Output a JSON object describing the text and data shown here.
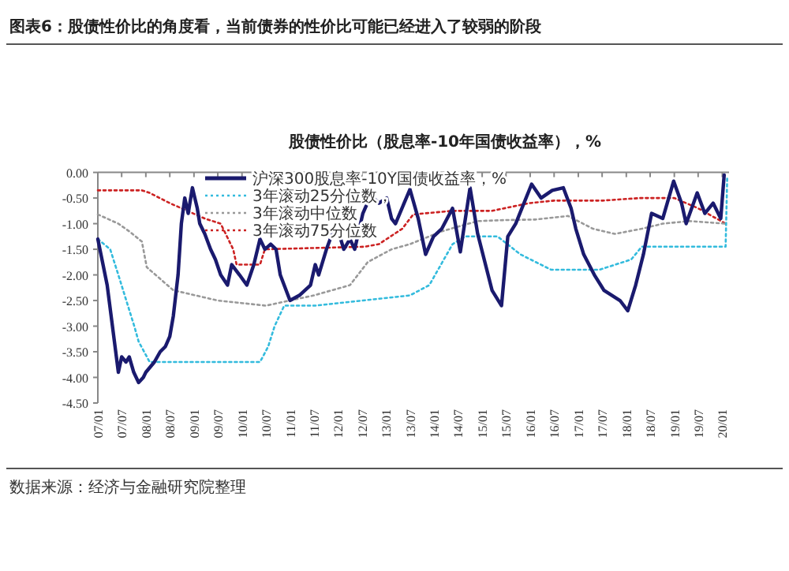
{
  "chart_data": {
    "type": "line",
    "title": "股债性价比（股息率-10年国债收益率），%",
    "subtitle": "图表6：股债性价比的角度看，当前债券的性价比可能已经进入了较弱的阶段",
    "annotations": [
      "数据来源：经济与金融研究院整理"
    ],
    "xlim": [
      "2007-01-01",
      "2020-02-21"
    ],
    "xticks": [
      {
        "value": "2007-01-01",
        "label": "07/01"
      },
      {
        "value": "2007-07-01",
        "label": "07/07"
      },
      {
        "value": "2008-01-01",
        "label": "08/01"
      },
      {
        "value": "2008-07-01",
        "label": "08/07"
      },
      {
        "value": "2009-01-01",
        "label": "09/01"
      },
      {
        "value": "2009-07-01",
        "label": "09/07"
      },
      {
        "value": "2010-01-01",
        "label": "10/01"
      },
      {
        "value": "2010-07-01",
        "label": "10/07"
      },
      {
        "value": "2011-01-01",
        "label": "11/01"
      },
      {
        "value": "2011-07-01",
        "label": "11/07"
      },
      {
        "value": "2012-01-01",
        "label": "12/01"
      },
      {
        "value": "2012-07-01",
        "label": "12/07"
      },
      {
        "value": "2013-01-01",
        "label": "13/01"
      },
      {
        "value": "2013-07-01",
        "label": "13/07"
      },
      {
        "value": "2014-01-01",
        "label": "14/01"
      },
      {
        "value": "2014-07-01",
        "label": "14/07"
      },
      {
        "value": "2015-01-01",
        "label": "15/01"
      },
      {
        "value": "2015-07-01",
        "label": "15/07"
      },
      {
        "value": "2016-01-01",
        "label": "16/01"
      },
      {
        "value": "2016-07-01",
        "label": "16/07"
      },
      {
        "value": "2017-01-01",
        "label": "17/01"
      },
      {
        "value": "2017-07-01",
        "label": "17/07"
      },
      {
        "value": "2018-01-01",
        "label": "18/01"
      },
      {
        "value": "2018-07-01",
        "label": "18/07"
      },
      {
        "value": "2019-01-01",
        "label": "19/01"
      },
      {
        "value": "2019-07-01",
        "label": "19/07"
      },
      {
        "value": "2020-01-01",
        "label": "20/01"
      }
    ],
    "ylim": [
      -4.5,
      0
    ],
    "yticks": [
      {
        "value": 0,
        "label": "0.00"
      },
      {
        "value": -0.5,
        "label": "-0.50"
      },
      {
        "value": -1,
        "label": "-1.00"
      },
      {
        "value": -1.5,
        "label": "-1.50"
      },
      {
        "value": -2,
        "label": "-2.00"
      },
      {
        "value": -2.5,
        "label": "-2.50"
      },
      {
        "value": -3,
        "label": "-3.00"
      },
      {
        "value": -3.5,
        "label": "-3.50"
      },
      {
        "value": -4,
        "label": "-4.00"
      },
      {
        "value": -4.5,
        "label": "-4.50"
      }
    ],
    "legend": "top",
    "marker": "none",
    "series": [
      {
        "name": "沪深300股息率-10Y国债收益率，%",
        "color": "#1a1a6e",
        "line_style": "solid",
        "x": [
          "2007-01-01",
          "2007-03-13",
          "2007-06-06",
          "2007-07-01",
          "2007-08-03",
          "2007-08-28",
          "2007-10-01",
          "2007-11-07",
          "2007-12-13",
          "2008-01-01",
          "2008-03-06",
          "2008-04-19",
          "2008-05-28",
          "2008-07-01",
          "2008-07-28",
          "2008-09-02",
          "2008-09-27",
          "2008-10-23",
          "2008-11-18",
          "2008-12-20",
          "2009-01-26",
          "2009-02-14",
          "2009-03-24",
          "2009-05-07",
          "2009-06-13",
          "2009-07-23",
          "2009-09-13",
          "2009-10-15",
          "2009-12-13",
          "2010-02-07",
          "2010-04-01",
          "2010-05-18",
          "2010-06-24",
          "2010-08-07",
          "2010-09-17",
          "2010-10-19",
          "2011-01-01",
          "2011-03-13",
          "2011-06-06",
          "2011-07-12",
          "2011-08-07",
          "2011-10-05",
          "2011-12-17",
          "2012-02-14",
          "2012-04-01",
          "2012-05-07",
          "2012-07-08",
          "2012-09-06",
          "2012-11-07",
          "2013-01-05",
          "2013-02-11",
          "2013-03-13",
          "2013-07-01",
          "2013-09-02",
          "2013-10-28",
          "2013-12-27",
          "2014-02-28",
          "2014-05-21",
          "2014-07-19",
          "2014-10-01",
          "2014-11-28",
          "2015-03-17",
          "2015-05-28",
          "2015-07-15",
          "2015-09-13",
          "2016-01-12",
          "2016-03-24",
          "2016-06-17",
          "2016-09-09",
          "2016-11-07",
          "2016-12-13",
          "2017-02-11",
          "2017-05-03",
          "2017-07-15",
          "2017-11-14",
          "2018-01-12",
          "2018-03-13",
          "2018-05-11",
          "2018-07-12",
          "2018-10-05",
          "2018-12-27",
          "2019-02-25",
          "2019-04-01",
          "2019-06-24",
          "2019-08-21",
          "2019-10-23",
          "2019-12-20",
          "2020-01-15"
        ],
        "values": [
          -1.3,
          -2.2,
          -3.9,
          -3.6,
          -3.7,
          -3.6,
          -3.9,
          -4.1,
          -4.0,
          -3.9,
          -3.7,
          -3.5,
          -3.4,
          -3.2,
          -2.8,
          -2.0,
          -1.0,
          -0.5,
          -0.8,
          -0.3,
          -0.7,
          -1.0,
          -1.2,
          -1.5,
          -1.7,
          -2.0,
          -2.2,
          -1.8,
          -2.0,
          -2.2,
          -1.8,
          -1.3,
          -1.5,
          -1.4,
          -1.5,
          -2.0,
          -2.5,
          -2.4,
          -2.2,
          -1.8,
          -2.0,
          -1.5,
          -1.0,
          -1.5,
          -1.3,
          -1.5,
          -0.8,
          -0.45,
          -0.6,
          -0.5,
          -0.9,
          -1.0,
          -0.33,
          -0.9,
          -1.6,
          -1.25,
          -1.1,
          -0.7,
          -1.55,
          -0.3,
          -1.2,
          -2.3,
          -2.6,
          -1.25,
          -1.0,
          -0.23,
          -0.5,
          -0.35,
          -0.3,
          -0.7,
          -1.1,
          -1.6,
          -2.0,
          -2.3,
          -2.5,
          -2.7,
          -2.2,
          -1.6,
          -0.8,
          -0.9,
          -0.17,
          -0.6,
          -1.0,
          -0.4,
          -0.8,
          -0.6,
          -0.9,
          -0.05
        ]
      },
      {
        "name": "3年滚动25分位数，",
        "color": "#33bbdd",
        "line_style": "dotted",
        "x": [
          "2007-01-01",
          "2007-04-05",
          "2007-06-06",
          "2007-10-05",
          "2007-11-07",
          "2008-01-30",
          "2009-07-01",
          "2010-05-18",
          "2010-07-19",
          "2010-09-06",
          "2010-11-18",
          "2011-07-12",
          "2012-07-08",
          "2013-07-01",
          "2013-11-25",
          "2014-05-21",
          "2014-08-25",
          "2015-01-01",
          "2015-04-28",
          "2015-10-19",
          "2016-06-09",
          "2017-06-09",
          "2018-02-07",
          "2018-04-28",
          "2020-01-26",
          "2020-02-07"
        ],
        "values": [
          -1.3,
          -1.5,
          -2.0,
          -3.0,
          -3.3,
          -3.7,
          -3.7,
          -3.7,
          -3.4,
          -3.0,
          -2.6,
          -2.6,
          -2.5,
          -2.4,
          -2.2,
          -1.4,
          -1.25,
          -1.25,
          -1.25,
          -1.6,
          -1.9,
          -1.9,
          -1.7,
          -1.45,
          -1.45,
          -0.1
        ]
      },
      {
        "name": "3年滚动中位数",
        "color": "#999999",
        "line_style": "dotted",
        "x": [
          "2007-01-01",
          "2007-06-06",
          "2007-08-28",
          "2007-12-02",
          "2008-01-08",
          "2008-07-28",
          "2009-07-01",
          "2010-07-01",
          "2011-07-01",
          "2012-04-01",
          "2012-08-14",
          "2013-02-11",
          "2013-07-01",
          "2014-02-28",
          "2014-11-28",
          "2015-07-01",
          "2016-02-07",
          "2016-10-15",
          "2017-04-23",
          "2017-10-05",
          "2018-04-28",
          "2018-10-05",
          "2019-04-26",
          "2020-01-26"
        ],
        "values": [
          -0.82,
          -1.0,
          -1.15,
          -1.35,
          -1.85,
          -2.3,
          -2.5,
          -2.6,
          -2.4,
          -2.2,
          -1.75,
          -1.5,
          -1.4,
          -1.15,
          -0.95,
          -0.93,
          -0.92,
          -0.85,
          -1.1,
          -1.2,
          -1.1,
          -1.0,
          -0.95,
          -1.0
        ]
      },
      {
        "name": "3年滚动75分位数",
        "color": "#cc2222",
        "line_style": "dotted",
        "x": [
          "2007-01-01",
          "2007-12-02",
          "2008-01-30",
          "2008-07-01",
          "2009-03-24",
          "2009-07-23",
          "2009-10-26",
          "2009-11-21",
          "2010-05-18",
          "2010-06-24",
          "2012-07-19",
          "2012-11-07",
          "2013-05-03",
          "2013-07-26",
          "2014-05-21",
          "2015-03-17",
          "2015-12-24",
          "2016-07-01",
          "2017-07-01",
          "2018-04-19",
          "2019-01-01",
          "2019-07-01",
          "2020-01-26"
        ],
        "values": [
          -0.35,
          -0.35,
          -0.4,
          -0.6,
          -0.9,
          -1.0,
          -1.5,
          -1.8,
          -1.8,
          -1.5,
          -1.45,
          -1.4,
          -1.1,
          -0.82,
          -0.75,
          -0.75,
          -0.6,
          -0.55,
          -0.55,
          -0.5,
          -0.5,
          -0.7,
          -1.0
        ]
      }
    ]
  }
}
